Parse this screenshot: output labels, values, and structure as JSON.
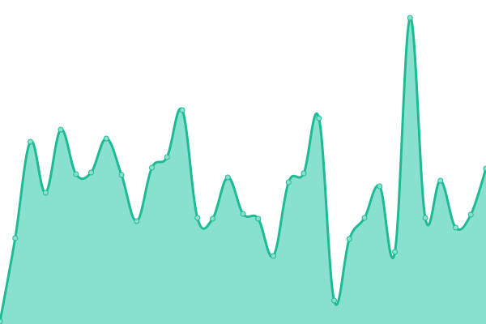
{
  "chart_data": {
    "type": "area",
    "title": "",
    "xlabel": "",
    "ylabel": "",
    "grid": false,
    "legend": "none",
    "smooth": true,
    "x": [
      0,
      1,
      2,
      3,
      4,
      5,
      6,
      7,
      8,
      9,
      10,
      11,
      12,
      13,
      14,
      15,
      16,
      17,
      18,
      19,
      20,
      21,
      22,
      23,
      24,
      25,
      26,
      27,
      28,
      29,
      30,
      31,
      32
    ],
    "ylim": [
      0,
      400
    ],
    "series": [
      {
        "values": [
          3,
          106,
          225,
          162,
          240,
          185,
          187,
          229,
          184,
          127,
          193,
          206,
          264,
          131,
          130,
          181,
          136,
          130,
          84,
          175,
          186,
          254,
          29,
          105,
          131,
          170,
          89,
          378,
          131,
          177,
          119,
          135,
          192
        ]
      }
    ],
    "colors": {
      "line": "#1dbb93",
      "fill": "#8ae0cf",
      "marker_fill": "#8ae0cf"
    }
  }
}
